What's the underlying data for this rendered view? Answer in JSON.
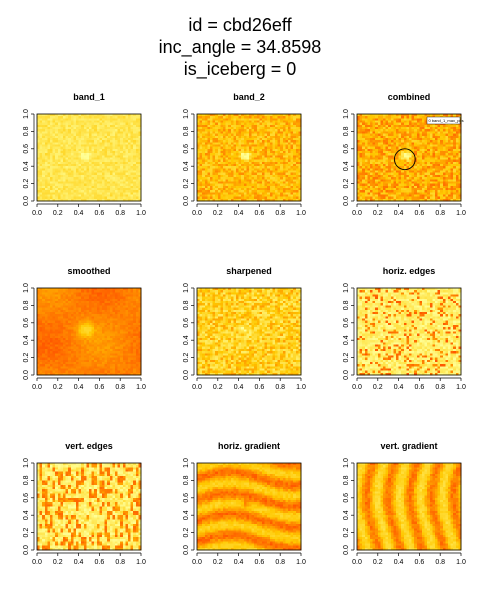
{
  "title_lines": [
    "id = cbd26eff",
    "inc_angle = 34.8598",
    "is_iceberg = 0"
  ],
  "chart_data": [
    {
      "type": "heatmap",
      "title": "band_1",
      "palette": "heat",
      "pattern": "band1",
      "xlim": [
        0,
        1
      ],
      "ylim": [
        0,
        1
      ],
      "xticks": [
        "0.0",
        "0.2",
        "0.4",
        "0.6",
        "0.8",
        "1.0"
      ],
      "yticks": [
        "0.0",
        "0.2",
        "0.4",
        "0.6",
        "0.8",
        "1.0"
      ]
    },
    {
      "type": "heatmap",
      "title": "band_2",
      "palette": "heat",
      "pattern": "band2",
      "xlim": [
        0,
        1
      ],
      "ylim": [
        0,
        1
      ],
      "xticks": [
        "0.0",
        "0.2",
        "0.4",
        "0.6",
        "0.8",
        "1.0"
      ],
      "yticks": [
        "0.0",
        "0.2",
        "0.4",
        "0.6",
        "0.8",
        "1.0"
      ]
    },
    {
      "type": "heatmap",
      "title": "combined",
      "palette": "heat",
      "pattern": "combined",
      "xlim": [
        0,
        1
      ],
      "ylim": [
        0,
        1
      ],
      "xticks": [
        "0.0",
        "0.2",
        "0.4",
        "0.6",
        "0.8",
        "1.0"
      ],
      "yticks": [
        "0.0",
        "0.2",
        "0.4",
        "0.6",
        "0.8",
        "1.0"
      ],
      "marker": {
        "x": 0.46,
        "y": 0.48,
        "r": 0.1
      },
      "legend": "0 band_1_max_pos"
    },
    {
      "type": "heatmap",
      "title": "smoothed",
      "palette": "heat",
      "pattern": "smoothed",
      "xlim": [
        0,
        1
      ],
      "ylim": [
        0,
        1
      ],
      "xticks": [
        "0.0",
        "0.2",
        "0.4",
        "0.6",
        "0.8",
        "1.0"
      ],
      "yticks": [
        "0.0",
        "0.2",
        "0.4",
        "0.6",
        "0.8",
        "1.0"
      ]
    },
    {
      "type": "heatmap",
      "title": "sharpened",
      "palette": "heat",
      "pattern": "sharpened",
      "xlim": [
        0,
        1
      ],
      "ylim": [
        0,
        1
      ],
      "xticks": [
        "0.0",
        "0.2",
        "0.4",
        "0.6",
        "0.8",
        "1.0"
      ],
      "yticks": [
        "0.0",
        "0.2",
        "0.4",
        "0.6",
        "0.8",
        "1.0"
      ]
    },
    {
      "type": "heatmap",
      "title": "horiz. edges",
      "palette": "heat",
      "pattern": "hedges",
      "xlim": [
        0,
        1
      ],
      "ylim": [
        0,
        1
      ],
      "xticks": [
        "0.0",
        "0.2",
        "0.4",
        "0.6",
        "0.8",
        "1.0"
      ],
      "yticks": [
        "0.0",
        "0.2",
        "0.4",
        "0.6",
        "0.8",
        "1.0"
      ]
    },
    {
      "type": "heatmap",
      "title": "vert. edges",
      "palette": "heat",
      "pattern": "vedges",
      "xlim": [
        0,
        1
      ],
      "ylim": [
        0,
        1
      ],
      "xticks": [
        "0.0",
        "0.2",
        "0.4",
        "0.6",
        "0.8",
        "1.0"
      ],
      "yticks": [
        "0.0",
        "0.2",
        "0.4",
        "0.6",
        "0.8",
        "1.0"
      ]
    },
    {
      "type": "heatmap",
      "title": "horiz. gradient",
      "palette": "heat",
      "pattern": "hgrad",
      "xlim": [
        0,
        1
      ],
      "ylim": [
        0,
        1
      ],
      "xticks": [
        "0.0",
        "0.2",
        "0.4",
        "0.6",
        "0.8",
        "1.0"
      ],
      "yticks": [
        "0.0",
        "0.2",
        "0.4",
        "0.6",
        "0.8",
        "1.0"
      ]
    },
    {
      "type": "heatmap",
      "title": "vert. gradient",
      "palette": "heat",
      "pattern": "vgrad",
      "xlim": [
        0,
        1
      ],
      "ylim": [
        0,
        1
      ],
      "xticks": [
        "0.0",
        "0.2",
        "0.4",
        "0.6",
        "0.8",
        "1.0"
      ],
      "yticks": [
        "0.0",
        "0.2",
        "0.4",
        "0.6",
        "0.8",
        "1.0"
      ]
    }
  ]
}
